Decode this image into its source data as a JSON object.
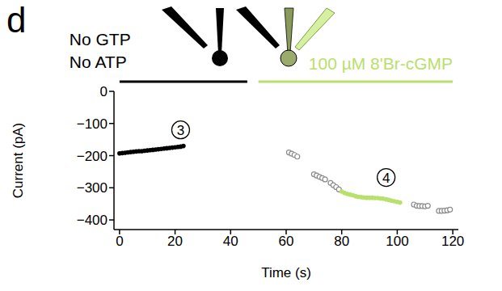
{
  "chart_data": {
    "type": "scatter",
    "title": "d",
    "x_label": "Time (s)",
    "y_label": "Current (pA)",
    "xlim": [
      -2,
      122
    ],
    "xticks": [
      0,
      20,
      40,
      60,
      80,
      100,
      120
    ],
    "ylim": [
      -430,
      0
    ],
    "yticks": [
      0,
      {
        "value": -100,
        "label": "−100"
      },
      {
        "value": -200,
        "label": "−200"
      },
      {
        "value": -300,
        "label": "−300"
      },
      {
        "value": -400,
        "label": "−400"
      }
    ],
    "grid": false,
    "series": [
      {
        "color": "#000000",
        "marker": "filled_circle",
        "x": [
          0,
          1,
          2,
          3,
          4,
          5,
          6,
          7,
          8,
          9,
          10,
          11,
          12,
          13,
          14,
          15,
          16,
          17,
          18,
          19,
          20,
          21,
          22,
          23
        ],
        "values": [
          -193,
          -192,
          -191,
          -190,
          -189,
          -188,
          -187,
          -186,
          -186,
          -185,
          -184,
          -183,
          -182,
          -181,
          -180,
          -179,
          -178,
          -177,
          -176,
          -175,
          -174,
          -173,
          -172,
          -170
        ]
      },
      {
        "color": "#8c8c8c",
        "marker": "open_circle",
        "x": [
          61,
          62,
          63,
          64,
          70,
          71,
          72,
          73,
          74,
          76,
          77,
          78,
          79,
          106,
          107,
          108,
          109,
          110,
          111,
          115,
          116,
          117,
          118,
          119
        ],
        "values": [
          -190,
          -194,
          -198,
          -203,
          -258,
          -262,
          -266,
          -270,
          -274,
          -285,
          -292,
          -298,
          -305,
          -352,
          -356,
          -357,
          -357,
          -358,
          -356,
          -372,
          -372,
          -371,
          -370,
          -368
        ]
      },
      {
        "color": "#b8e06c",
        "marker": "filled_circle",
        "x": [
          80,
          81,
          82,
          83,
          84,
          85,
          86,
          87,
          88,
          89,
          90,
          91,
          92,
          93,
          94,
          95,
          96,
          97,
          98,
          99,
          100,
          101
        ],
        "values": [
          -312,
          -316,
          -319,
          -321,
          -323,
          -326,
          -328,
          -329,
          -330,
          -331,
          -331,
          -331,
          -332,
          -332,
          -333,
          -334,
          -336,
          -338,
          -340,
          -342,
          -344,
          -346
        ]
      }
    ],
    "conditions": [
      {
        "labels": [
          "No GTP",
          "No ATP"
        ],
        "start": 0,
        "end": 46,
        "color": "#000000"
      },
      {
        "labels": [
          "100 µM 8'Br-cGMP"
        ],
        "start": 50,
        "end": 120,
        "color": "#b8e06c"
      }
    ],
    "annotations": [
      {
        "text": "3",
        "x": 22,
        "y": -120
      },
      {
        "text": "4",
        "x": 96,
        "y": -268
      }
    ]
  }
}
